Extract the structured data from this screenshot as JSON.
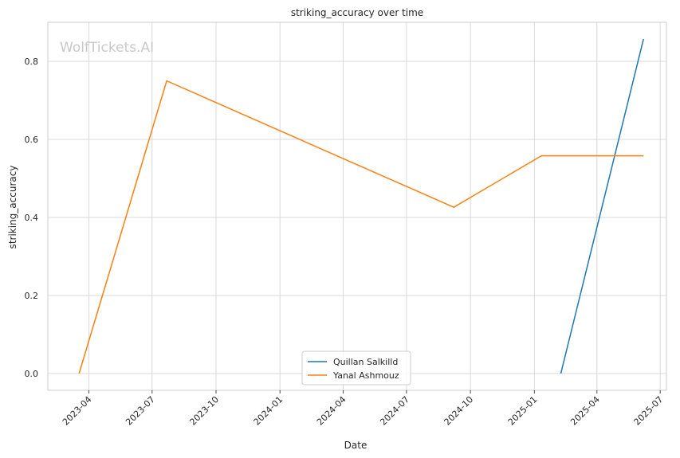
{
  "chart_data": {
    "type": "line",
    "title": "striking_accuracy over time",
    "xlabel": "Date",
    "ylabel": "striking_accuracy",
    "watermark": "WolfTickets.AI",
    "x_axis_type": "date",
    "xlim": [
      "2023-02-01",
      "2025-07-10"
    ],
    "ylim": [
      -0.043,
      0.9
    ],
    "x_ticks": [
      "2023-04-01",
      "2023-07-01",
      "2023-10-01",
      "2024-01-01",
      "2024-04-01",
      "2024-07-01",
      "2024-10-01",
      "2025-01-01",
      "2025-04-01",
      "2025-07-01"
    ],
    "x_tick_labels": [
      "2023-04",
      "2023-07",
      "2023-10",
      "2024-01",
      "2024-04",
      "2024-07",
      "2024-10",
      "2025-01",
      "2025-04",
      "2025-07"
    ],
    "y_ticks": [
      0.0,
      0.2,
      0.4,
      0.6,
      0.8
    ],
    "y_tick_labels": [
      "0.0",
      "0.2",
      "0.4",
      "0.6",
      "0.8"
    ],
    "grid": true,
    "legend_position": "bottom-center",
    "series": [
      {
        "name": "Quillan Salkilld",
        "color": "#1f77b4",
        "x": [
          "2025-02-08",
          "2025-06-07"
        ],
        "y": [
          0.0,
          0.857
        ]
      },
      {
        "name": "Yanal Ashmouz",
        "color": "#ff7f0e",
        "x": [
          "2023-03-18",
          "2023-07-22",
          "2024-09-07",
          "2025-01-11",
          "2025-06-07"
        ],
        "y": [
          0.0,
          0.75,
          0.426,
          0.558,
          0.558
        ]
      }
    ]
  }
}
